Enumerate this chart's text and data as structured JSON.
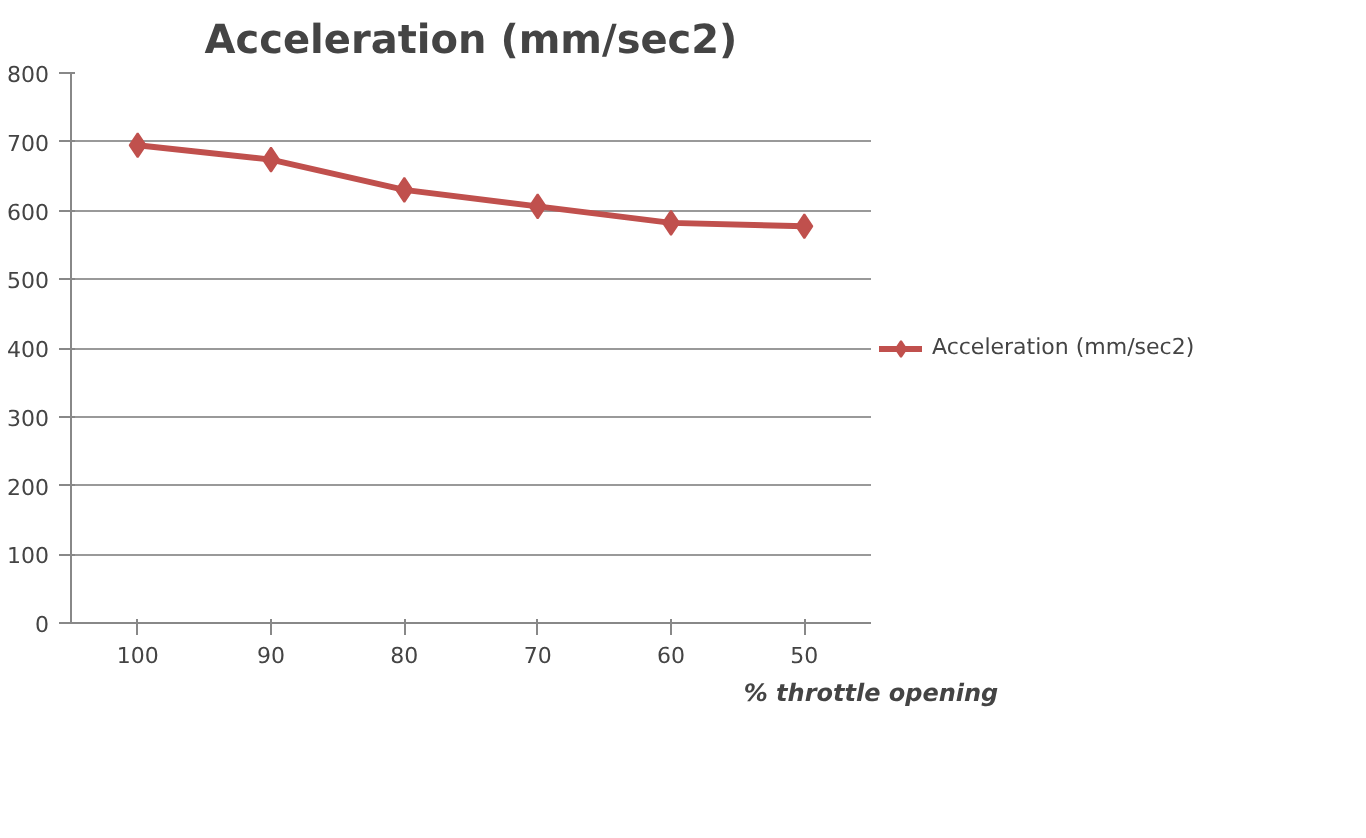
{
  "chart_data": {
    "type": "line",
    "title": "Acceleration (mm/sec2)",
    "xlabel": "% throttle opening",
    "categories": [
      "100",
      "90",
      "80",
      "70",
      "60",
      "50"
    ],
    "series": [
      {
        "name": "Acceleration (mm/sec2)",
        "color": "#c0504d",
        "values": [
          695,
          674,
          630,
          606,
          582,
          577
        ]
      }
    ],
    "ylim": [
      0,
      800
    ],
    "yticks": [
      0,
      100,
      200,
      300,
      400,
      500,
      600,
      700,
      800
    ],
    "grid": "y",
    "legend": "right",
    "marker": "diamond",
    "line_style": "solid"
  }
}
